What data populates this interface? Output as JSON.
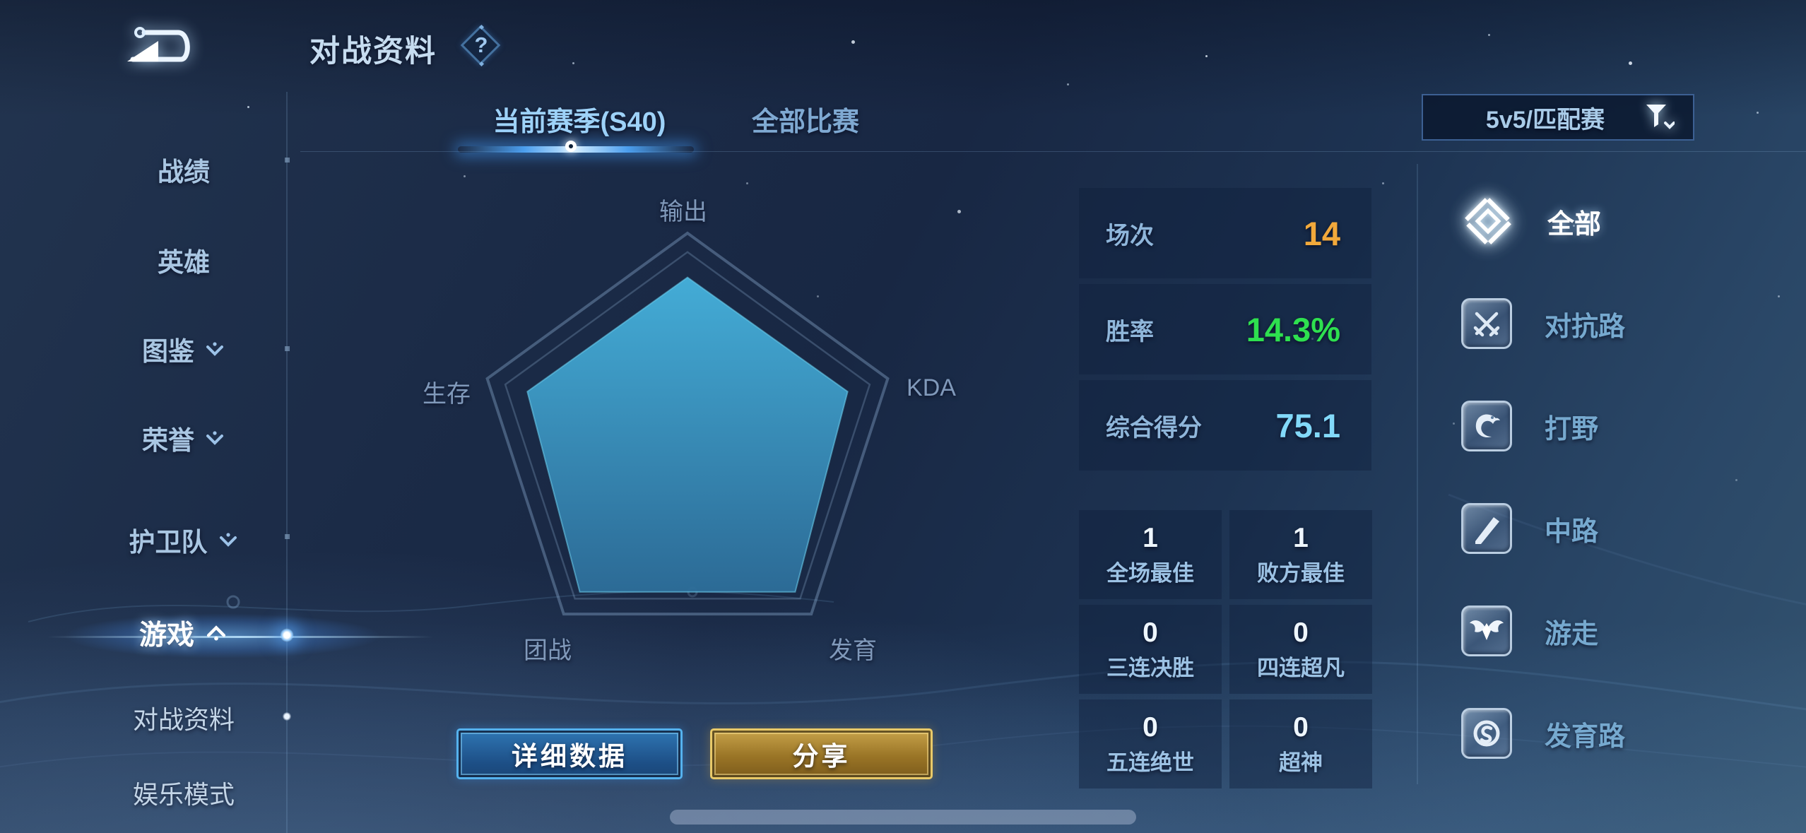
{
  "header": {
    "title": "对战资料",
    "help_icon": "question-mark",
    "back_icon": "back-arrow"
  },
  "left_sidebar": {
    "items": [
      {
        "label": "战绩",
        "chevron": "none",
        "active": false
      },
      {
        "label": "英雄",
        "chevron": "none",
        "active": false
      },
      {
        "label": "图鉴",
        "chevron": "down",
        "active": false
      },
      {
        "label": "荣誉",
        "chevron": "down",
        "active": false
      },
      {
        "label": "护卫队",
        "chevron": "down",
        "active": false
      },
      {
        "label": "游戏",
        "chevron": "up",
        "active": true
      },
      {
        "label": "对战资料",
        "chevron": "none",
        "active": false
      },
      {
        "label": "娱乐模式",
        "chevron": "none",
        "active": false
      }
    ]
  },
  "tabs": {
    "current_season": "当前赛季(S40)",
    "all_matches": "全部比赛",
    "active": "当前赛季(S40)"
  },
  "filter_dropdown": {
    "value": "5v5/匹配赛",
    "icon": "filter-funnel"
  },
  "chart_data": {
    "type": "radar",
    "axes": [
      "输出",
      "KDA",
      "发育",
      "团战",
      "生存"
    ],
    "values_normalized": [
      0.79,
      0.8,
      0.87,
      0.87,
      0.8
    ],
    "scale_max": 1,
    "grid_rings": [
      1.0,
      0.91
    ],
    "legend": "none",
    "fill_top": "#46b3de",
    "fill_bottom": "#2d6e9a",
    "outline_color": "rgba(155,190,225,0.35)"
  },
  "summary": {
    "rows": [
      {
        "label": "场次",
        "value": "14",
        "value_color": "#f2a93b"
      },
      {
        "label": "胜率",
        "value": "14.3%",
        "value_color": "#2ee04f"
      },
      {
        "label": "综合得分",
        "value": "75.1",
        "value_color": "#82d9f9"
      }
    ]
  },
  "badges": {
    "cells": [
      {
        "value": "1",
        "label": "全场最佳"
      },
      {
        "value": "1",
        "label": "败方最佳"
      },
      {
        "value": "0",
        "label": "三连决胜"
      },
      {
        "value": "0",
        "label": "四连超凡"
      },
      {
        "value": "0",
        "label": "五连绝世"
      },
      {
        "value": "0",
        "label": "超神"
      }
    ]
  },
  "actions": {
    "detail": "详细数据",
    "share": "分享"
  },
  "right_sidebar": {
    "items": [
      {
        "label": "全部",
        "icon": "all-lanes-icon",
        "active": true
      },
      {
        "label": "对抗路",
        "icon": "clash-lane-icon",
        "active": false
      },
      {
        "label": "打野",
        "icon": "jungle-icon",
        "active": false
      },
      {
        "label": "中路",
        "icon": "mid-lane-icon",
        "active": false
      },
      {
        "label": "游走",
        "icon": "roam-icon",
        "active": false
      },
      {
        "label": "发育路",
        "icon": "farm-lane-icon",
        "active": false
      }
    ]
  },
  "colors": {
    "accent_blue": "#4db2f0",
    "gold": "#d4af54",
    "win_green": "#2ee04f",
    "score_cyan": "#82d9f9",
    "matches_orange": "#f2a93b"
  }
}
